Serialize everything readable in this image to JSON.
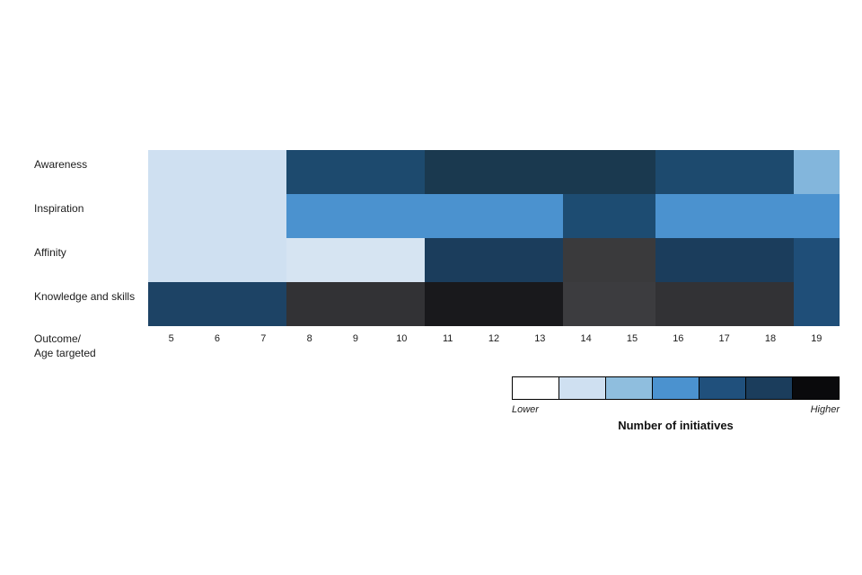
{
  "chart_data": {
    "type": "heatmap",
    "title": "",
    "xlabel": "",
    "ylabel": "",
    "corner_label_line1": "Outcome/",
    "corner_label_line2": "Age targeted",
    "x_categories": [
      "5",
      "6",
      "7",
      "8",
      "9",
      "10",
      "11",
      "12",
      "13",
      "14",
      "15",
      "16",
      "17",
      "18",
      "19"
    ],
    "y_categories": [
      "Awareness",
      "Inspiration",
      "Affinity",
      "Knowledge and skills"
    ],
    "cell_colors": [
      [
        "#cfe0f1",
        "#cfe0f1",
        "#cfe0f1",
        "#1d4a6e",
        "#1d4a6e",
        "#1d4a6e",
        "#1a394f",
        "#1a394f",
        "#1a394f",
        "#1a394f",
        "#1a394f",
        "#1d4a6e",
        "#1d4a6e",
        "#1d4a6e",
        "#83b6dc"
      ],
      [
        "#cfe0f1",
        "#cfe0f1",
        "#cfe0f1",
        "#4b92cf",
        "#4b92cf",
        "#4b92cf",
        "#4b92cf",
        "#4b92cf",
        "#4b92cf",
        "#1d4c72",
        "#1d4c72",
        "#4b92cf",
        "#4b92cf",
        "#4b92cf",
        "#4b92cf"
      ],
      [
        "#cfe0f1",
        "#cfe0f1",
        "#cfe0f1",
        "#d6e4f2",
        "#d6e4f2",
        "#d6e4f2",
        "#1b3d5c",
        "#1b3d5c",
        "#1b3d5c",
        "#3a3a3c",
        "#3a3a3c",
        "#1b3d5c",
        "#1b3d5c",
        "#1b3d5c",
        "#1f4e78"
      ],
      [
        "#1d4365",
        "#1d4365",
        "#1d4365",
        "#323235",
        "#323235",
        "#323235",
        "#19191c",
        "#19191c",
        "#19191c",
        "#3c3c3f",
        "#3c3c3f",
        "#323235",
        "#323235",
        "#323235",
        "#1f4e78"
      ]
    ],
    "legend": {
      "title": "Number of initiatives",
      "low_label": "Lower",
      "high_label": "Higher",
      "colors": [
        "#ffffff",
        "#cfe0f1",
        "#8fbede",
        "#4b92cf",
        "#20507c",
        "#1b3d5c",
        "#0a0a0c"
      ]
    }
  }
}
